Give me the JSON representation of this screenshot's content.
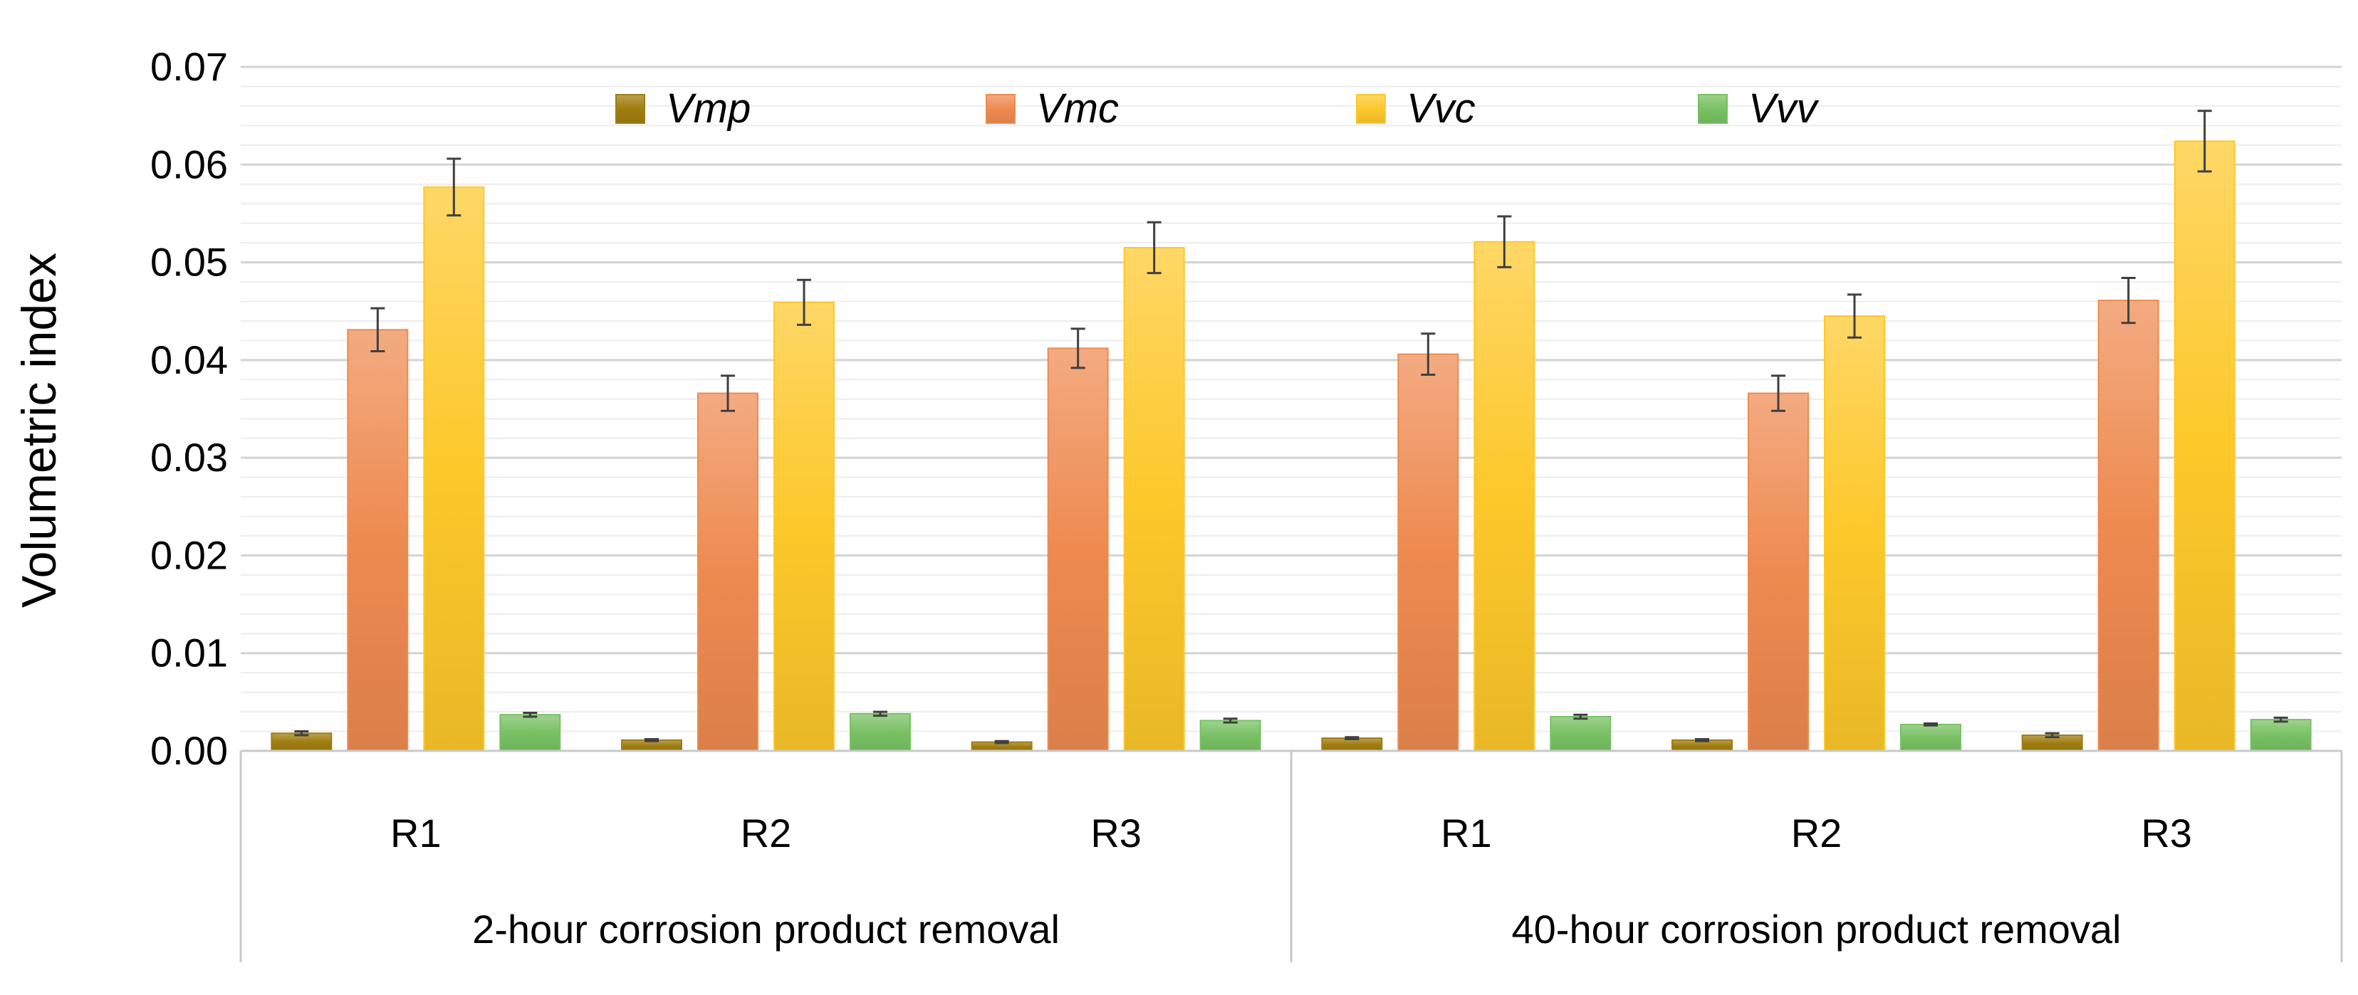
{
  "chart_data": {
    "type": "bar",
    "ylabel": "Volumetric index",
    "ylim": [
      0,
      0.07
    ],
    "yticks": [
      "0.00",
      "0.01",
      "0.02",
      "0.03",
      "0.04",
      "0.05",
      "0.06",
      "0.07"
    ],
    "minor_gridlines": true,
    "legend": "top",
    "groups": [
      {
        "label": "2-hour corrosion product removal",
        "categories": [
          "R1",
          "R2",
          "R3"
        ]
      },
      {
        "label": "40-hour corrosion product removal",
        "categories": [
          "R1",
          "R2",
          "R3"
        ]
      }
    ],
    "series": [
      {
        "name": "Vmp",
        "color": "#a07d10",
        "values": [
          0.0018,
          0.0011,
          0.0009,
          0.0013,
          0.0011,
          0.0016
        ],
        "errors": [
          0.0002,
          0.0001,
          0.0001,
          0.0001,
          0.0001,
          0.0002
        ]
      },
      {
        "name": "Vmc",
        "color": "#ee8a50",
        "values": [
          0.0431,
          0.0366,
          0.0412,
          0.0406,
          0.0366,
          0.0461
        ],
        "errors": [
          0.0022,
          0.0018,
          0.002,
          0.0021,
          0.0018,
          0.0023
        ]
      },
      {
        "name": "Vvc",
        "color": "#fdc82a",
        "values": [
          0.0577,
          0.0459,
          0.0515,
          0.0521,
          0.0445,
          0.0624
        ],
        "errors": [
          0.0029,
          0.0023,
          0.0026,
          0.0026,
          0.0022,
          0.0031
        ]
      },
      {
        "name": "Vvv",
        "color": "#78c163",
        "values": [
          0.0037,
          0.0038,
          0.0031,
          0.0035,
          0.0027,
          0.0032
        ],
        "errors": [
          0.0002,
          0.0002,
          0.0002,
          0.0002,
          0.0001,
          0.0002
        ]
      }
    ]
  }
}
